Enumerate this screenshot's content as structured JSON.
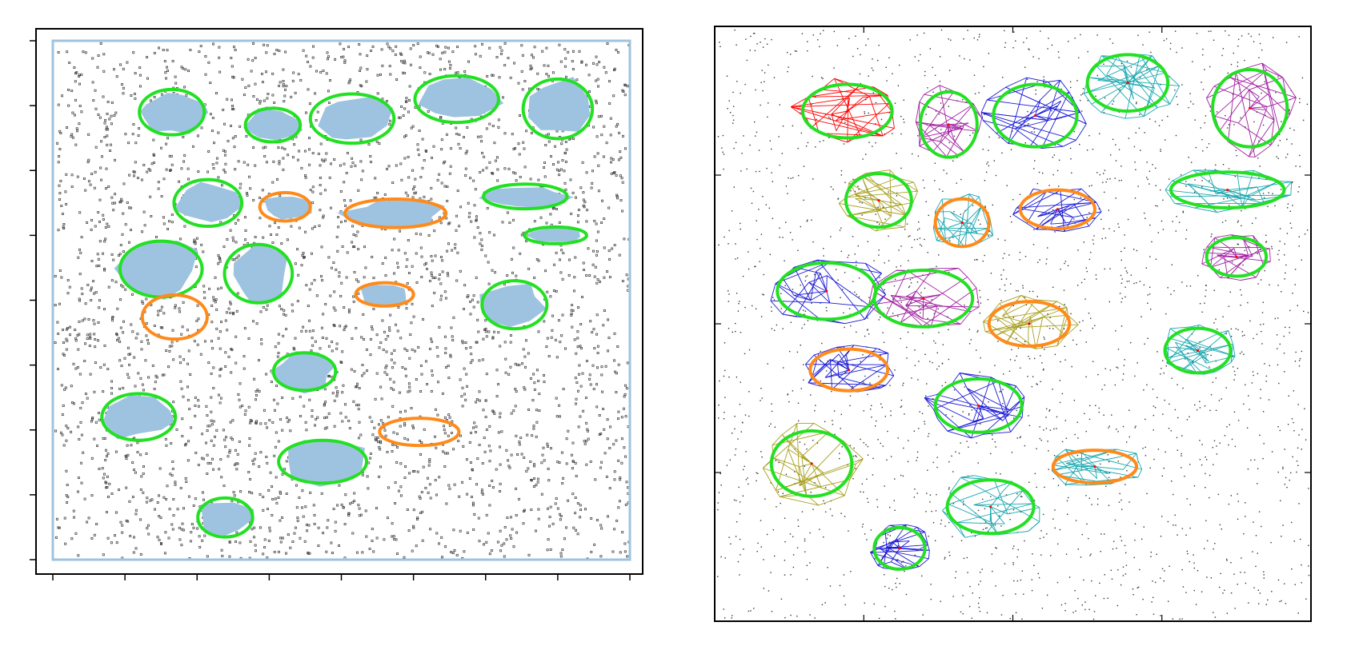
{
  "figure": {
    "colors": {
      "frame": "#000000",
      "points": "#333333",
      "region_fill": "#9ec3e0",
      "detected_ellipse": "#22e022",
      "missed_ellipse": "#ff8a1a",
      "cluster_center": "#ff0000",
      "mesh_colors": [
        "#ff0000",
        "#1a1ad6",
        "#19a8b0",
        "#a020a0",
        "#a8a020"
      ]
    }
  },
  "chart_data": [
    {
      "panel": "left",
      "type": "scatter",
      "title": "",
      "xlabel": "",
      "ylabel": "",
      "xlim": [
        0,
        8
      ],
      "ylim": [
        0,
        8
      ],
      "grid": false,
      "legend": "none",
      "x_tick_labels": [],
      "y_tick_labels": [],
      "x_ticks": [
        0,
        1,
        2,
        3,
        4,
        5,
        6,
        7,
        8
      ],
      "y_ticks": [
        0,
        1,
        2,
        3,
        4,
        5,
        6,
        7,
        8
      ],
      "background_points": 3000,
      "shaded_regions": [
        {
          "cx": 1.65,
          "cy": 6.9,
          "rx": 0.45,
          "ry": 0.35
        },
        {
          "cx": 3.05,
          "cy": 6.7,
          "rx": 0.38,
          "ry": 0.26
        },
        {
          "cx": 4.15,
          "cy": 6.8,
          "rx": 0.58,
          "ry": 0.38
        },
        {
          "cx": 5.6,
          "cy": 7.1,
          "rx": 0.58,
          "ry": 0.36
        },
        {
          "cx": 7.0,
          "cy": 6.95,
          "rx": 0.48,
          "ry": 0.46
        },
        {
          "cx": 2.15,
          "cy": 5.5,
          "rx": 0.47,
          "ry": 0.36
        },
        {
          "cx": 6.55,
          "cy": 5.6,
          "rx": 0.58,
          "ry": 0.19
        },
        {
          "cx": 6.97,
          "cy": 5.0,
          "rx": 0.43,
          "ry": 0.13
        },
        {
          "cx": 1.5,
          "cy": 4.48,
          "rx": 0.57,
          "ry": 0.43
        },
        {
          "cx": 2.85,
          "cy": 4.41,
          "rx": 0.47,
          "ry": 0.45
        },
        {
          "cx": 6.4,
          "cy": 3.93,
          "rx": 0.45,
          "ry": 0.37
        },
        {
          "cx": 3.49,
          "cy": 2.9,
          "rx": 0.43,
          "ry": 0.29
        },
        {
          "cx": 1.19,
          "cy": 2.2,
          "rx": 0.51,
          "ry": 0.36
        },
        {
          "cx": 3.74,
          "cy": 1.51,
          "rx": 0.61,
          "ry": 0.33
        },
        {
          "cx": 2.39,
          "cy": 0.65,
          "rx": 0.38,
          "ry": 0.3
        },
        {
          "cx": 3.22,
          "cy": 5.44,
          "rx": 0.35,
          "ry": 0.22
        },
        {
          "cx": 4.6,
          "cy": 4.09,
          "rx": 0.4,
          "ry": 0.18
        },
        {
          "cx": 4.75,
          "cy": 5.34,
          "rx": 0.7,
          "ry": 0.22
        }
      ],
      "detected_ellipses": [
        {
          "cx": 1.65,
          "cy": 6.9,
          "rx": 0.45,
          "ry": 0.35
        },
        {
          "cx": 3.05,
          "cy": 6.7,
          "rx": 0.38,
          "ry": 0.26
        },
        {
          "cx": 4.15,
          "cy": 6.8,
          "rx": 0.58,
          "ry": 0.38
        },
        {
          "cx": 5.6,
          "cy": 7.1,
          "rx": 0.58,
          "ry": 0.36
        },
        {
          "cx": 7.0,
          "cy": 6.95,
          "rx": 0.48,
          "ry": 0.46
        },
        {
          "cx": 2.15,
          "cy": 5.5,
          "rx": 0.47,
          "ry": 0.36
        },
        {
          "cx": 6.55,
          "cy": 5.6,
          "rx": 0.58,
          "ry": 0.19
        },
        {
          "cx": 6.97,
          "cy": 5.0,
          "rx": 0.43,
          "ry": 0.13
        },
        {
          "cx": 1.5,
          "cy": 4.48,
          "rx": 0.57,
          "ry": 0.43
        },
        {
          "cx": 2.85,
          "cy": 4.41,
          "rx": 0.47,
          "ry": 0.45
        },
        {
          "cx": 6.4,
          "cy": 3.93,
          "rx": 0.45,
          "ry": 0.37
        },
        {
          "cx": 3.49,
          "cy": 2.9,
          "rx": 0.43,
          "ry": 0.29
        },
        {
          "cx": 1.19,
          "cy": 2.2,
          "rx": 0.51,
          "ry": 0.36
        },
        {
          "cx": 3.74,
          "cy": 1.51,
          "rx": 0.61,
          "ry": 0.33
        },
        {
          "cx": 2.39,
          "cy": 0.65,
          "rx": 0.38,
          "ry": 0.3
        }
      ],
      "missed_ellipses": [
        {
          "cx": 3.22,
          "cy": 5.44,
          "rx": 0.35,
          "ry": 0.22
        },
        {
          "cx": 4.75,
          "cy": 5.34,
          "rx": 0.7,
          "ry": 0.22
        },
        {
          "cx": 4.6,
          "cy": 4.09,
          "rx": 0.4,
          "ry": 0.18
        },
        {
          "cx": 1.69,
          "cy": 3.74,
          "rx": 0.45,
          "ry": 0.34
        },
        {
          "cx": 5.08,
          "cy": 1.97,
          "rx": 0.55,
          "ry": 0.21
        }
      ]
    },
    {
      "panel": "right",
      "type": "scatter",
      "title": "",
      "xlabel": "",
      "ylabel": "",
      "xlim": [
        0,
        4
      ],
      "ylim": [
        0,
        4
      ],
      "grid": false,
      "legend": "none",
      "x_tick_labels": [],
      "y_tick_labels": [],
      "x_ticks": [
        0,
        1,
        2,
        3,
        4
      ],
      "y_ticks": [
        0,
        1,
        2,
        3,
        4
      ],
      "background_points": 2200,
      "clusters": [
        {
          "mesh": "red",
          "cx": 0.89,
          "cy": 3.43,
          "rx": 0.3,
          "ry": 0.18
        },
        {
          "mesh": "magenta",
          "cx": 1.57,
          "cy": 3.34,
          "rx": 0.19,
          "ry": 0.22
        },
        {
          "mesh": "blue",
          "cx": 2.15,
          "cy": 3.4,
          "rx": 0.28,
          "ry": 0.21
        },
        {
          "mesh": "cyan",
          "cx": 2.77,
          "cy": 3.62,
          "rx": 0.27,
          "ry": 0.19
        },
        {
          "mesh": "magenta",
          "cx": 3.59,
          "cy": 3.45,
          "rx": 0.25,
          "ry": 0.26
        },
        {
          "mesh": "olive",
          "cx": 1.1,
          "cy": 2.83,
          "rx": 0.22,
          "ry": 0.18
        },
        {
          "mesh": "cyan",
          "cx": 3.44,
          "cy": 2.9,
          "rx": 0.38,
          "ry": 0.12
        },
        {
          "mesh": "magenta",
          "cx": 3.5,
          "cy": 2.45,
          "rx": 0.2,
          "ry": 0.13
        },
        {
          "mesh": "blue",
          "cx": 0.75,
          "cy": 2.22,
          "rx": 0.33,
          "ry": 0.19
        },
        {
          "mesh": "magenta",
          "cx": 1.4,
          "cy": 2.17,
          "rx": 0.33,
          "ry": 0.19
        },
        {
          "mesh": "cyan",
          "cx": 3.24,
          "cy": 1.82,
          "rx": 0.22,
          "ry": 0.15
        },
        {
          "mesh": "blue",
          "cx": 1.77,
          "cy": 1.45,
          "rx": 0.29,
          "ry": 0.18
        },
        {
          "mesh": "olive",
          "cx": 0.65,
          "cy": 1.06,
          "rx": 0.27,
          "ry": 0.22
        },
        {
          "mesh": "cyan",
          "cx": 1.85,
          "cy": 0.77,
          "rx": 0.29,
          "ry": 0.18
        },
        {
          "mesh": "blue",
          "cx": 1.24,
          "cy": 0.49,
          "rx": 0.17,
          "ry": 0.14
        },
        {
          "mesh": "blue",
          "cx": 0.9,
          "cy": 1.69,
          "rx": 0.26,
          "ry": 0.14,
          "missed": true
        },
        {
          "mesh": "cyan",
          "cx": 1.66,
          "cy": 2.68,
          "rx": 0.18,
          "ry": 0.16,
          "missed": true
        },
        {
          "mesh": "blue",
          "cx": 2.3,
          "cy": 2.77,
          "rx": 0.25,
          "ry": 0.13,
          "missed": true
        },
        {
          "mesh": "olive",
          "cx": 2.11,
          "cy": 2.0,
          "rx": 0.27,
          "ry": 0.15,
          "missed": true
        },
        {
          "mesh": "cyan",
          "cx": 2.55,
          "cy": 1.04,
          "rx": 0.28,
          "ry": 0.11,
          "missed": true
        }
      ]
    }
  ]
}
